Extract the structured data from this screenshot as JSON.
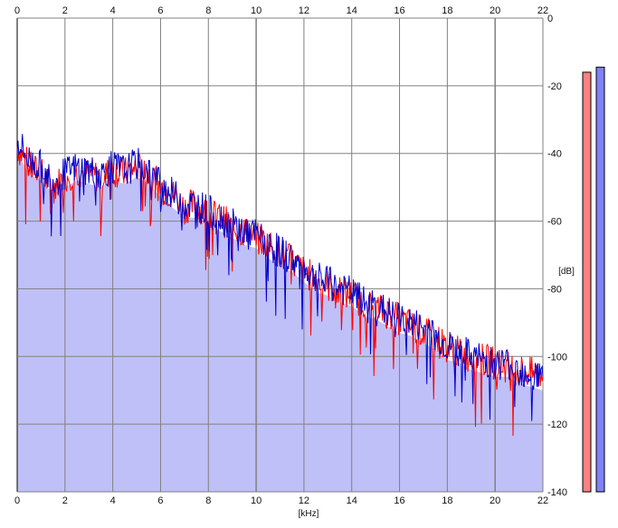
{
  "chart_data": {
    "type": "area",
    "title": "",
    "xlabel": "[kHz]",
    "ylabel": "[dB]",
    "xlim": [
      0,
      22
    ],
    "ylim": [
      -140,
      0
    ],
    "x_ticks": [
      0,
      2,
      4,
      6,
      8,
      10,
      12,
      14,
      16,
      18,
      20,
      22
    ],
    "x_tick_labels": [
      "0",
      "2",
      "4",
      "6",
      "8",
      "10",
      "12",
      "14",
      "16",
      "18",
      "20",
      "22"
    ],
    "y_ticks": [
      0,
      -20,
      -40,
      -60,
      -80,
      -100,
      -120,
      -140
    ],
    "y_tick_labels": [
      "0",
      "-20",
      "-40",
      "-60",
      "-80",
      "-100",
      "-120",
      "-140"
    ],
    "grid": true,
    "series": [
      {
        "color": "#ff0000",
        "x": [
          0,
          0.5,
          1,
          1.5,
          2,
          2.5,
          3,
          3.5,
          4,
          4.5,
          5,
          5.5,
          6,
          6.5,
          7,
          7.5,
          8,
          8.5,
          9,
          9.5,
          10,
          10.5,
          11,
          11.5,
          12,
          12.5,
          13,
          13.5,
          14,
          14.5,
          15,
          15.5,
          16,
          16.5,
          17,
          17.5,
          18,
          18.5,
          19,
          19.5,
          20,
          20.5,
          21,
          21.5,
          22
        ],
        "values": [
          -38,
          -44,
          -46,
          -50,
          -47,
          -45,
          -46,
          -47,
          -45,
          -46,
          -44,
          -46,
          -50,
          -52,
          -56,
          -55,
          -58,
          -59,
          -62,
          -63,
          -65,
          -67,
          -69,
          -72,
          -75,
          -77,
          -79,
          -81,
          -82,
          -84,
          -86,
          -87,
          -89,
          -91,
          -93,
          -95,
          -97,
          -99,
          -100,
          -101,
          -102,
          -103,
          -104,
          -105,
          -106
        ]
      },
      {
        "color": "#0000cc",
        "x": [
          0,
          0.5,
          1,
          1.5,
          2,
          2.5,
          3,
          3.5,
          4,
          4.5,
          5,
          5.5,
          6,
          6.5,
          7,
          7.5,
          8,
          8.5,
          9,
          9.5,
          10,
          10.5,
          11,
          11.5,
          12,
          12.5,
          13,
          13.5,
          14,
          14.5,
          15,
          15.5,
          16,
          16.5,
          17,
          17.5,
          18,
          18.5,
          19,
          19.5,
          20,
          20.5,
          21,
          21.5,
          22
        ],
        "values": [
          -36,
          -42,
          -44,
          -48,
          -46,
          -44,
          -45,
          -46,
          -44,
          -45,
          -43,
          -45,
          -49,
          -52,
          -55,
          -55,
          -57,
          -59,
          -61,
          -63,
          -64,
          -67,
          -69,
          -71,
          -74,
          -77,
          -78,
          -80,
          -81,
          -84,
          -85,
          -87,
          -89,
          -90,
          -92,
          -94,
          -97,
          -98,
          -100,
          -101,
          -102,
          -102,
          -104,
          -105,
          -106
        ]
      }
    ],
    "meters": {
      "ylim": [
        -140,
        0
      ],
      "left_level": -16,
      "right_level": -14.5,
      "left_color": "#ff8080",
      "right_color": "#8080ff"
    },
    "colors": {
      "fill": "#c0c0f8",
      "grid": "#808080",
      "zero_line": "#000000"
    }
  }
}
